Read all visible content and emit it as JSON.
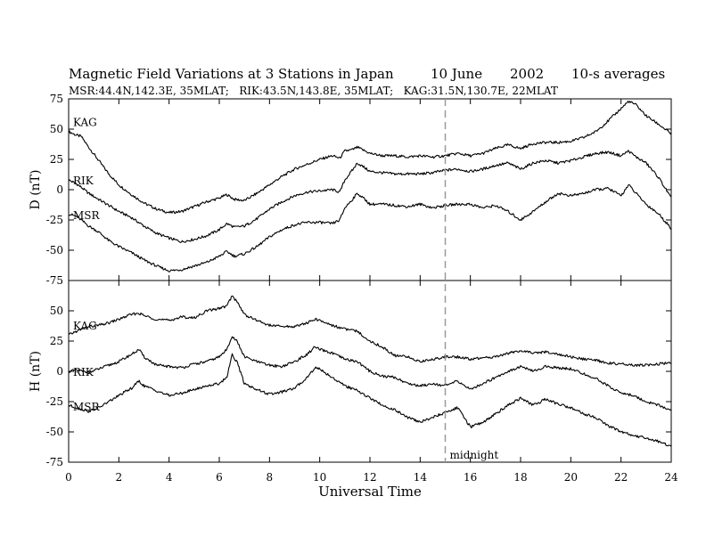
{
  "chart_data": {
    "type": "line",
    "title_parts": [
      "Magnetic Field Variations at 3 Stations in Japan",
      "10 June",
      "2002",
      "10-s averages"
    ],
    "subtitle": "MSR:44.4N,142.3E, 35MLAT;   RIK:43.5N,143.8E, 35MLAT;   KAG:31.5N,130.7E, 22MLAT",
    "xlabel": "Universal Time",
    "xlim": [
      0,
      24
    ],
    "xticks": [
      0,
      2,
      4,
      6,
      8,
      10,
      12,
      14,
      16,
      18,
      20,
      22,
      24
    ],
    "xtick_labels": [
      "0",
      "2",
      "4",
      "6",
      "8",
      "10",
      "12",
      "14",
      "16",
      "18",
      "20",
      "22",
      "24"
    ],
    "annotation": {
      "x": 15,
      "label": "midnight"
    },
    "panels": [
      {
        "ylabel": "D (nT)",
        "ylim": [
          -75,
          75
        ],
        "yticks": [
          75,
          50,
          25,
          0,
          -25,
          -50,
          -75
        ],
        "series": [
          {
            "name": "KAG",
            "x": [
              0,
              0.3,
              0.5,
              0.8,
              1.2,
              1.6,
              2,
              2.5,
              3,
              3.5,
              4,
              4.5,
              5,
              5.5,
              6,
              6.3,
              6.6,
              7,
              7.5,
              8,
              8.5,
              9,
              9.5,
              10,
              10.5,
              10.8,
              11,
              11.3,
              11.5,
              11.8,
              12,
              12.5,
              13,
              13.5,
              14,
              14.5,
              15,
              15.5,
              16,
              16.5,
              17,
              17.5,
              18,
              18.5,
              19,
              19.5,
              20,
              20.5,
              21,
              21.5,
              22,
              22.3,
              22.6,
              23,
              23.5,
              24
            ],
            "y": [
              48,
              45,
              44,
              35,
              24,
              13,
              4,
              -4,
              -11,
              -16,
              -19,
              -18,
              -14,
              -10,
              -7,
              -4,
              -8,
              -9,
              -3,
              4,
              11,
              17,
              21,
              25,
              28,
              26,
              32,
              33,
              35,
              32,
              30,
              28,
              28,
              27,
              28,
              27,
              28,
              30,
              28,
              30,
              34,
              37,
              34,
              38,
              39,
              39,
              40,
              43,
              48,
              57,
              67,
              73,
              70,
              61,
              54,
              46
            ]
          },
          {
            "name": "RIK",
            "x": [
              0,
              0.3,
              0.5,
              0.8,
              1.2,
              1.6,
              2,
              2.5,
              3,
              3.5,
              4,
              4.5,
              5,
              5.5,
              6,
              6.3,
              6.6,
              7,
              7.5,
              8,
              8.5,
              9,
              9.5,
              10,
              10.5,
              10.8,
              11,
              11.3,
              11.5,
              11.8,
              12,
              12.5,
              13,
              13.5,
              14,
              14.5,
              15,
              15.5,
              16,
              16.5,
              17,
              17.5,
              18,
              18.5,
              19,
              19.5,
              20,
              20.5,
              21,
              21.5,
              22,
              22.3,
              22.6,
              23,
              23.5,
              24
            ],
            "y": [
              8,
              5,
              2,
              -3,
              -8,
              -13,
              -18,
              -23,
              -30,
              -36,
              -40,
              -43,
              -41,
              -38,
              -33,
              -28,
              -31,
              -30,
              -24,
              -16,
              -10,
              -5,
              -2,
              -1,
              0,
              -2,
              8,
              16,
              22,
              18,
              15,
              14,
              13,
              13,
              13,
              14,
              16,
              17,
              15,
              17,
              20,
              22,
              17,
              22,
              24,
              22,
              24,
              27,
              30,
              31,
              28,
              32,
              27,
              22,
              10,
              -7
            ]
          },
          {
            "name": "MSR",
            "x": [
              0,
              0.3,
              0.5,
              0.8,
              1.2,
              1.6,
              2,
              2.5,
              3,
              3.5,
              4,
              4.5,
              5,
              5.5,
              6,
              6.3,
              6.6,
              7,
              7.5,
              8,
              8.5,
              9,
              9.5,
              10,
              10.5,
              10.8,
              11,
              11.3,
              11.5,
              11.8,
              12,
              12.5,
              13,
              13.5,
              14,
              14.5,
              15,
              15.5,
              16,
              16.5,
              17,
              17.5,
              18,
              18.5,
              19,
              19.5,
              20,
              20.5,
              21,
              21.5,
              22,
              22.3,
              22.6,
              23,
              23.5,
              24
            ],
            "y": [
              -20,
              -22,
              -25,
              -30,
              -35,
              -42,
              -47,
              -52,
              -58,
              -63,
              -67,
              -66,
              -63,
              -60,
              -55,
              -51,
              -55,
              -53,
              -47,
              -39,
              -33,
              -29,
              -27,
              -27,
              -28,
              -25,
              -15,
              -8,
              -3,
              -8,
              -12,
              -12,
              -13,
              -14,
              -12,
              -15,
              -13,
              -12,
              -12,
              -15,
              -13,
              -18,
              -25,
              -18,
              -10,
              -3,
              -5,
              -3,
              0,
              1,
              -5,
              4,
              -3,
              -12,
              -20,
              -32
            ]
          }
        ]
      },
      {
        "ylabel": "H (nT)",
        "ylim": [
          -75,
          75
        ],
        "yticks": [
          75,
          50,
          25,
          0,
          -25,
          -50,
          -75
        ],
        "series": [
          {
            "name": "KAG",
            "x": [
              0,
              0.3,
              0.8,
              1.2,
              1.6,
              2,
              2.5,
              2.8,
              3,
              3.5,
              4,
              4.5,
              5,
              5.5,
              6,
              6.3,
              6.5,
              6.7,
              7,
              7.5,
              8,
              8.5,
              9,
              9.5,
              9.8,
              10,
              10.5,
              11,
              11.5,
              12,
              12.5,
              13,
              13.5,
              14,
              14.5,
              15,
              15.5,
              16,
              16.5,
              17,
              17.5,
              18,
              18.5,
              19,
              19.5,
              20,
              20.5,
              21,
              21.5,
              22,
              22.5,
              23,
              23.5,
              24
            ],
            "y": [
              30,
              33,
              37,
              38,
              40,
              43,
              47,
              48,
              46,
              43,
              42,
              45,
              44,
              50,
              52,
              54,
              62,
              58,
              47,
              42,
              38,
              37,
              37,
              40,
              43,
              42,
              38,
              35,
              33,
              25,
              20,
              13,
              12,
              8,
              10,
              12,
              12,
              10,
              11,
              12,
              15,
              17,
              15,
              16,
              14,
              12,
              10,
              9,
              7,
              6,
              5,
              5,
              6,
              7
            ]
          },
          {
            "name": "RIK",
            "x": [
              0,
              0.3,
              0.8,
              1.2,
              1.6,
              2,
              2.5,
              2.8,
              3,
              3.5,
              4,
              4.5,
              5,
              5.5,
              6,
              6.3,
              6.5,
              6.7,
              7,
              7.5,
              8,
              8.5,
              9,
              9.5,
              9.8,
              10,
              10.5,
              11,
              11.5,
              12,
              12.5,
              13,
              13.5,
              14,
              14.5,
              15,
              15.5,
              16,
              16.5,
              17,
              17.5,
              18,
              18.5,
              19,
              19.5,
              20,
              20.5,
              21,
              21.5,
              22,
              22.5,
              23,
              23.5,
              24
            ],
            "y": [
              0,
              1,
              -1,
              2,
              5,
              8,
              14,
              18,
              12,
              5,
              4,
              3,
              6,
              8,
              12,
              18,
              29,
              25,
              12,
              8,
              5,
              4,
              8,
              14,
              20,
              18,
              15,
              10,
              8,
              0,
              -4,
              -5,
              -10,
              -12,
              -10,
              -12,
              -8,
              -15,
              -10,
              -5,
              0,
              4,
              0,
              4,
              3,
              2,
              -2,
              -6,
              -12,
              -18,
              -20,
              -25,
              -28,
              -32
            ]
          },
          {
            "name": "MSR",
            "x": [
              0,
              0.3,
              0.8,
              1.2,
              1.6,
              2,
              2.5,
              2.8,
              3,
              3.5,
              4,
              4.5,
              5,
              5.5,
              6,
              6.3,
              6.5,
              6.7,
              7,
              7.5,
              8,
              8.5,
              9,
              9.5,
              9.8,
              10,
              10.5,
              11,
              11.5,
              12,
              12.5,
              13,
              13.5,
              14,
              14.5,
              15,
              15.5,
              16,
              16.5,
              17,
              17.5,
              18,
              18.5,
              19,
              19.5,
              20,
              20.5,
              21,
              21.5,
              22,
              22.5,
              23,
              23.5,
              24
            ],
            "y": [
              -28,
              -30,
              -33,
              -30,
              -25,
              -20,
              -14,
              -8,
              -12,
              -16,
              -20,
              -18,
              -15,
              -12,
              -10,
              -5,
              14,
              8,
              -10,
              -15,
              -19,
              -17,
              -14,
              -5,
              3,
              2,
              -5,
              -12,
              -16,
              -22,
              -28,
              -32,
              -38,
              -42,
              -38,
              -34,
              -30,
              -46,
              -42,
              -35,
              -28,
              -22,
              -28,
              -23,
              -27,
              -30,
              -35,
              -38,
              -45,
              -50,
              -53,
              -55,
              -58,
              -62
            ]
          }
        ]
      }
    ]
  }
}
